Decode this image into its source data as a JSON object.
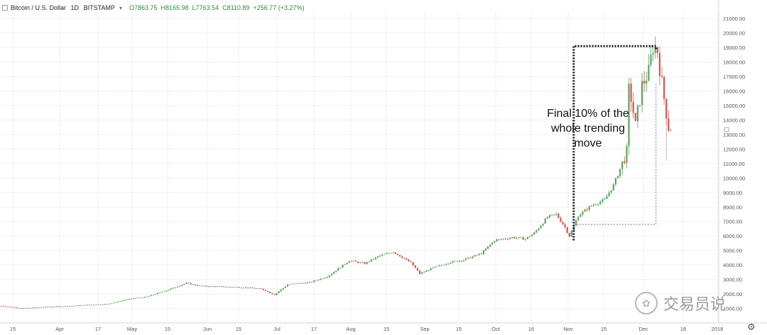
{
  "header": {
    "symbol": "Bitcoin / U.S. Dollar",
    "interval": "1D",
    "exchange": "BITSTAMP",
    "open": "O7863.75",
    "high": "H8165.98",
    "low": "L7763.54",
    "close": "C8110.89",
    "change": "+256.77 (+3.27%)"
  },
  "annotation": {
    "line1": "Final 10% of the",
    "line2": "whole trending",
    "line3": "move"
  },
  "watermark": "交易员说",
  "colors": {
    "up": "#5fa35f",
    "down": "#d9534f",
    "grid": "#eef1f4",
    "axis_text": "#555555",
    "box_black": "#111111",
    "box_gray": "#b8b8b8"
  },
  "chart_data": {
    "type": "candlestick",
    "x_tick_labels": [
      "15",
      "Apr",
      "17",
      "May",
      "15",
      "Jun",
      "15",
      "Jul",
      "17",
      "Aug",
      "15",
      "Sep",
      "15",
      "Oct",
      "16",
      "Nov",
      "15",
      "Dec",
      "18",
      "2018"
    ],
    "y_tick_labels": [
      "1000.00",
      "2000.00",
      "3000.00",
      "4000.00",
      "5000.00",
      "6000.00",
      "7000.00",
      "8000.00",
      "9000.00",
      "10000.00",
      "11000.00",
      "12000.00",
      "13000.00",
      "14000.00",
      "15000.00",
      "16000.00",
      "17000.00",
      "18000.00",
      "19000.00",
      "20000.00",
      "21000.00"
    ],
    "ylim": [
      0,
      21500
    ],
    "keypoints": [
      [
        0,
        1180
      ],
      [
        10,
        1000
      ],
      [
        20,
        1100
      ],
      [
        32,
        1170
      ],
      [
        40,
        1250
      ],
      [
        48,
        1300
      ],
      [
        58,
        1650
      ],
      [
        66,
        1800
      ],
      [
        76,
        2300
      ],
      [
        84,
        2750
      ],
      [
        90,
        2550
      ],
      [
        100,
        2500
      ],
      [
        110,
        2450
      ],
      [
        118,
        2350
      ],
      [
        124,
        1950
      ],
      [
        130,
        2650
      ],
      [
        140,
        2800
      ],
      [
        148,
        3200
      ],
      [
        158,
        4300
      ],
      [
        165,
        4100
      ],
      [
        172,
        4650
      ],
      [
        178,
        4900
      ],
      [
        186,
        4150
      ],
      [
        190,
        3400
      ],
      [
        196,
        3800
      ],
      [
        204,
        4200
      ],
      [
        210,
        4350
      ],
      [
        218,
        4800
      ],
      [
        224,
        5700
      ],
      [
        232,
        5900
      ],
      [
        238,
        5800
      ],
      [
        242,
        6200
      ],
      [
        248,
        7300
      ],
      [
        252,
        7500
      ],
      [
        256,
        6600
      ],
      [
        258,
        6000
      ],
      [
        262,
        7400
      ],
      [
        268,
        8100
      ],
      [
        274,
        8500
      ],
      [
        278,
        9500
      ],
      [
        282,
        11000
      ],
      [
        284,
        11800
      ],
      [
        285,
        16500
      ],
      [
        288,
        13600
      ],
      [
        291,
        16400
      ],
      [
        294,
        17300
      ],
      [
        296,
        19100
      ],
      [
        298,
        18800
      ],
      [
        300,
        16500
      ],
      [
        302,
        14500
      ],
      [
        303,
        13500
      ]
    ],
    "measure_boxes": [
      {
        "style": "dotted-black",
        "x_start": 258,
        "y_low": 5700,
        "y_high": 19100
      },
      {
        "style": "dotted-gray",
        "x_start": 258,
        "y_low": 6800,
        "y_high": 16500
      }
    ]
  }
}
